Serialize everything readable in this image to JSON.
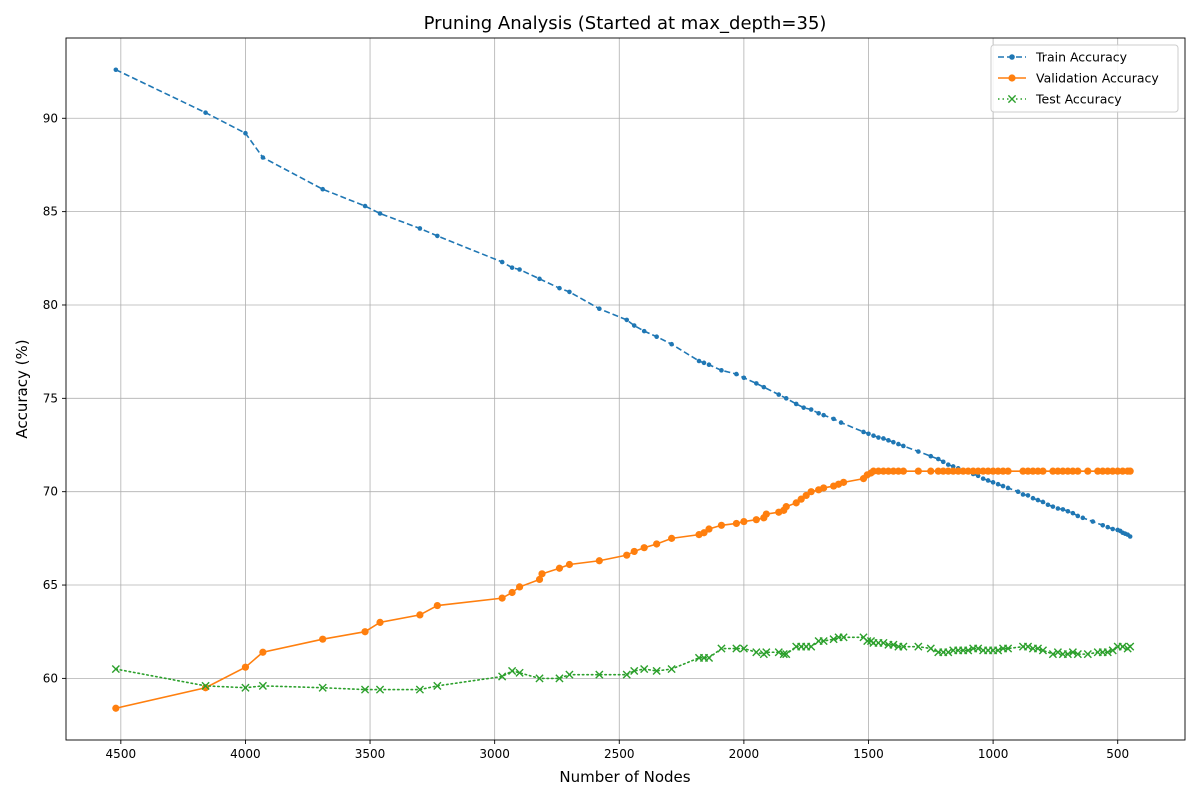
{
  "chart_data": {
    "type": "line",
    "title": "Pruning Analysis (Started at max_depth=35)",
    "xlabel": "Number of Nodes",
    "ylabel": "Accuracy (%)",
    "xlim": [
      4720,
      230
    ],
    "ylim": [
      56.7,
      94.3
    ],
    "xticks": [
      4500,
      4000,
      3500,
      3000,
      2500,
      2000,
      1500,
      1000,
      500
    ],
    "yticks": [
      60,
      65,
      70,
      75,
      80,
      85,
      90
    ],
    "grid": true,
    "legend_position": "top-right",
    "series": [
      {
        "name": "Train Accuracy",
        "color": "#1f77b4",
        "linestyle": "dashed",
        "marker": "dot",
        "points": [
          [
            4520,
            92.6
          ],
          [
            4160,
            90.3
          ],
          [
            4000,
            89.2
          ],
          [
            3930,
            87.9
          ],
          [
            3690,
            86.2
          ],
          [
            3520,
            85.3
          ],
          [
            3460,
            84.9
          ],
          [
            3300,
            84.1
          ],
          [
            3230,
            83.7
          ],
          [
            2970,
            82.3
          ],
          [
            2930,
            82.0
          ],
          [
            2900,
            81.9
          ],
          [
            2820,
            81.4
          ],
          [
            2740,
            80.9
          ],
          [
            2700,
            80.7
          ],
          [
            2580,
            79.8
          ],
          [
            2470,
            79.2
          ],
          [
            2440,
            78.9
          ],
          [
            2400,
            78.6
          ],
          [
            2350,
            78.3
          ],
          [
            2290,
            77.9
          ],
          [
            2180,
            77.0
          ],
          [
            2160,
            76.9
          ],
          [
            2140,
            76.8
          ],
          [
            2090,
            76.5
          ],
          [
            2030,
            76.3
          ],
          [
            2000,
            76.1
          ],
          [
            1950,
            75.8
          ],
          [
            1920,
            75.6
          ],
          [
            1860,
            75.2
          ],
          [
            1830,
            75.0
          ],
          [
            1790,
            74.7
          ],
          [
            1760,
            74.5
          ],
          [
            1730,
            74.4
          ],
          [
            1700,
            74.2
          ],
          [
            1680,
            74.1
          ],
          [
            1640,
            73.9
          ],
          [
            1610,
            73.7
          ],
          [
            1520,
            73.2
          ],
          [
            1500,
            73.1
          ],
          [
            1480,
            73.0
          ],
          [
            1460,
            72.9
          ],
          [
            1440,
            72.85
          ],
          [
            1420,
            72.75
          ],
          [
            1400,
            72.65
          ],
          [
            1380,
            72.55
          ],
          [
            1360,
            72.45
          ],
          [
            1300,
            72.15
          ],
          [
            1250,
            71.9
          ],
          [
            1220,
            71.75
          ],
          [
            1200,
            71.6
          ],
          [
            1180,
            71.45
          ],
          [
            1160,
            71.35
          ],
          [
            1140,
            71.25
          ],
          [
            1120,
            71.15
          ],
          [
            1100,
            71.05
          ],
          [
            1080,
            70.95
          ],
          [
            1060,
            70.85
          ],
          [
            1040,
            70.7
          ],
          [
            1020,
            70.6
          ],
          [
            1000,
            70.5
          ],
          [
            980,
            70.4
          ],
          [
            960,
            70.3
          ],
          [
            940,
            70.2
          ],
          [
            900,
            70.0
          ],
          [
            880,
            69.85
          ],
          [
            860,
            69.8
          ],
          [
            840,
            69.65
          ],
          [
            820,
            69.55
          ],
          [
            800,
            69.45
          ],
          [
            780,
            69.3
          ],
          [
            760,
            69.2
          ],
          [
            740,
            69.1
          ],
          [
            720,
            69.05
          ],
          [
            700,
            68.95
          ],
          [
            680,
            68.85
          ],
          [
            660,
            68.7
          ],
          [
            640,
            68.6
          ],
          [
            600,
            68.4
          ],
          [
            560,
            68.2
          ],
          [
            540,
            68.1
          ],
          [
            520,
            68.0
          ],
          [
            500,
            67.95
          ],
          [
            490,
            67.9
          ],
          [
            480,
            67.8
          ],
          [
            470,
            67.75
          ],
          [
            460,
            67.7
          ],
          [
            450,
            67.6
          ]
        ]
      },
      {
        "name": "Validation Accuracy",
        "color": "#ff7f0e",
        "linestyle": "solid",
        "marker": "circle",
        "points": [
          [
            4520,
            58.4
          ],
          [
            4160,
            59.5
          ],
          [
            4000,
            60.6
          ],
          [
            3930,
            61.4
          ],
          [
            3690,
            62.1
          ],
          [
            3520,
            62.5
          ],
          [
            3460,
            63.0
          ],
          [
            3300,
            63.4
          ],
          [
            3230,
            63.9
          ],
          [
            2970,
            64.3
          ],
          [
            2930,
            64.6
          ],
          [
            2900,
            64.9
          ],
          [
            2820,
            65.3
          ],
          [
            2810,
            65.6
          ],
          [
            2740,
            65.9
          ],
          [
            2700,
            66.1
          ],
          [
            2580,
            66.3
          ],
          [
            2470,
            66.6
          ],
          [
            2440,
            66.8
          ],
          [
            2400,
            67.0
          ],
          [
            2350,
            67.2
          ],
          [
            2290,
            67.5
          ],
          [
            2180,
            67.7
          ],
          [
            2160,
            67.8
          ],
          [
            2140,
            68.0
          ],
          [
            2090,
            68.2
          ],
          [
            2030,
            68.3
          ],
          [
            2000,
            68.4
          ],
          [
            1950,
            68.5
          ],
          [
            1920,
            68.6
          ],
          [
            1910,
            68.8
          ],
          [
            1860,
            68.9
          ],
          [
            1840,
            69.0
          ],
          [
            1830,
            69.2
          ],
          [
            1790,
            69.4
          ],
          [
            1770,
            69.6
          ],
          [
            1750,
            69.8
          ],
          [
            1730,
            70.0
          ],
          [
            1700,
            70.1
          ],
          [
            1680,
            70.2
          ],
          [
            1640,
            70.3
          ],
          [
            1620,
            70.4
          ],
          [
            1600,
            70.5
          ],
          [
            1520,
            70.7
          ],
          [
            1505,
            70.9
          ],
          [
            1490,
            71.0
          ],
          [
            1480,
            71.1
          ],
          [
            1460,
            71.1
          ],
          [
            1440,
            71.1
          ],
          [
            1420,
            71.1
          ],
          [
            1400,
            71.1
          ],
          [
            1380,
            71.1
          ],
          [
            1360,
            71.1
          ],
          [
            1300,
            71.1
          ],
          [
            1250,
            71.1
          ],
          [
            1220,
            71.1
          ],
          [
            1200,
            71.1
          ],
          [
            1180,
            71.1
          ],
          [
            1160,
            71.1
          ],
          [
            1140,
            71.1
          ],
          [
            1120,
            71.1
          ],
          [
            1100,
            71.1
          ],
          [
            1080,
            71.1
          ],
          [
            1060,
            71.1
          ],
          [
            1040,
            71.1
          ],
          [
            1020,
            71.1
          ],
          [
            1000,
            71.1
          ],
          [
            980,
            71.1
          ],
          [
            960,
            71.1
          ],
          [
            940,
            71.1
          ],
          [
            880,
            71.1
          ],
          [
            860,
            71.1
          ],
          [
            840,
            71.1
          ],
          [
            820,
            71.1
          ],
          [
            800,
            71.1
          ],
          [
            760,
            71.1
          ],
          [
            740,
            71.1
          ],
          [
            720,
            71.1
          ],
          [
            700,
            71.1
          ],
          [
            680,
            71.1
          ],
          [
            660,
            71.1
          ],
          [
            620,
            71.1
          ],
          [
            580,
            71.1
          ],
          [
            560,
            71.1
          ],
          [
            540,
            71.1
          ],
          [
            520,
            71.1
          ],
          [
            500,
            71.1
          ],
          [
            480,
            71.1
          ],
          [
            460,
            71.1
          ],
          [
            450,
            71.1
          ]
        ]
      },
      {
        "name": "Test Accuracy",
        "color": "#2ca02c",
        "linestyle": "dotted",
        "marker": "x",
        "points": [
          [
            4520,
            60.5
          ],
          [
            4160,
            59.6
          ],
          [
            4000,
            59.5
          ],
          [
            3930,
            59.6
          ],
          [
            3690,
            59.5
          ],
          [
            3520,
            59.4
          ],
          [
            3460,
            59.4
          ],
          [
            3300,
            59.4
          ],
          [
            3230,
            59.6
          ],
          [
            2970,
            60.1
          ],
          [
            2930,
            60.4
          ],
          [
            2900,
            60.3
          ],
          [
            2820,
            60.0
          ],
          [
            2740,
            60.0
          ],
          [
            2700,
            60.2
          ],
          [
            2580,
            60.2
          ],
          [
            2470,
            60.2
          ],
          [
            2440,
            60.4
          ],
          [
            2400,
            60.5
          ],
          [
            2350,
            60.4
          ],
          [
            2290,
            60.5
          ],
          [
            2180,
            61.1
          ],
          [
            2160,
            61.1
          ],
          [
            2140,
            61.1
          ],
          [
            2090,
            61.6
          ],
          [
            2030,
            61.6
          ],
          [
            2000,
            61.6
          ],
          [
            1950,
            61.4
          ],
          [
            1920,
            61.3
          ],
          [
            1910,
            61.4
          ],
          [
            1860,
            61.4
          ],
          [
            1840,
            61.3
          ],
          [
            1830,
            61.3
          ],
          [
            1790,
            61.7
          ],
          [
            1770,
            61.7
          ],
          [
            1750,
            61.7
          ],
          [
            1730,
            61.7
          ],
          [
            1700,
            62.0
          ],
          [
            1680,
            62.0
          ],
          [
            1640,
            62.1
          ],
          [
            1620,
            62.2
          ],
          [
            1600,
            62.2
          ],
          [
            1520,
            62.2
          ],
          [
            1505,
            62.0
          ],
          [
            1490,
            62.0
          ],
          [
            1480,
            61.9
          ],
          [
            1460,
            61.9
          ],
          [
            1440,
            61.9
          ],
          [
            1420,
            61.8
          ],
          [
            1400,
            61.8
          ],
          [
            1380,
            61.7
          ],
          [
            1360,
            61.7
          ],
          [
            1300,
            61.7
          ],
          [
            1250,
            61.6
          ],
          [
            1220,
            61.4
          ],
          [
            1200,
            61.4
          ],
          [
            1180,
            61.4
          ],
          [
            1160,
            61.5
          ],
          [
            1140,
            61.5
          ],
          [
            1120,
            61.5
          ],
          [
            1100,
            61.5
          ],
          [
            1080,
            61.6
          ],
          [
            1060,
            61.6
          ],
          [
            1040,
            61.5
          ],
          [
            1020,
            61.5
          ],
          [
            1000,
            61.5
          ],
          [
            980,
            61.5
          ],
          [
            960,
            61.6
          ],
          [
            940,
            61.6
          ],
          [
            880,
            61.7
          ],
          [
            860,
            61.7
          ],
          [
            840,
            61.6
          ],
          [
            820,
            61.6
          ],
          [
            800,
            61.5
          ],
          [
            760,
            61.3
          ],
          [
            740,
            61.4
          ],
          [
            720,
            61.3
          ],
          [
            700,
            61.3
          ],
          [
            680,
            61.4
          ],
          [
            660,
            61.3
          ],
          [
            620,
            61.3
          ],
          [
            580,
            61.4
          ],
          [
            560,
            61.4
          ],
          [
            540,
            61.4
          ],
          [
            520,
            61.5
          ],
          [
            500,
            61.7
          ],
          [
            480,
            61.7
          ],
          [
            460,
            61.6
          ],
          [
            450,
            61.7
          ]
        ]
      }
    ]
  }
}
